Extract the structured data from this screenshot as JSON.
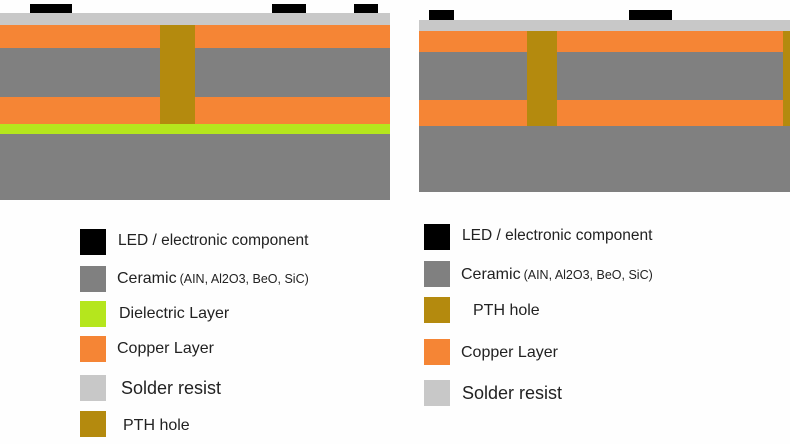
{
  "colors": {
    "led": "#000000",
    "ceramic": "#808080",
    "dielectric": "#b5e61d",
    "copper": "#f58535",
    "solder": "#c8c8c8",
    "pth": "#b48a0e"
  },
  "left_legend": [
    {
      "key": "led",
      "label": "LED / electronic component",
      "sub": ""
    },
    {
      "key": "ceramic",
      "label": "Ceramic",
      "sub": "(AIN, Al2O3, BeO, SiC)"
    },
    {
      "key": "dielectric",
      "label": "Dielectric Layer",
      "sub": ""
    },
    {
      "key": "copper",
      "label": "Copper Layer",
      "sub": ""
    },
    {
      "key": "solder",
      "label": "Solder resist",
      "sub": ""
    },
    {
      "key": "pth",
      "label": "PTH hole",
      "sub": ""
    }
  ],
  "right_legend": [
    {
      "key": "led",
      "label": "LED / electronic component",
      "sub": ""
    },
    {
      "key": "ceramic",
      "label": "Ceramic",
      "sub": "(AIN, Al2O3, BeO, SiC)"
    },
    {
      "key": "pth",
      "label": "PTH hole",
      "sub": ""
    },
    {
      "key": "copper",
      "label": "Copper Layer",
      "sub": ""
    },
    {
      "key": "solder",
      "label": "Solder resist",
      "sub": ""
    }
  ]
}
